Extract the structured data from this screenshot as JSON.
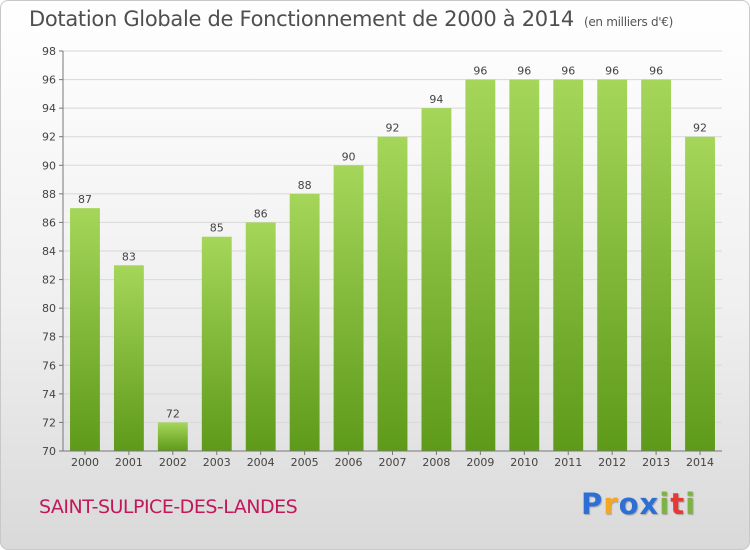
{
  "header": {
    "title": "Dotation Globale de Fonctionnement de 2000 à 2014",
    "subtitle": "(en milliers d'€)"
  },
  "commune": "SAINT-SULPICE-DES-LANDES",
  "logo": {
    "letters": [
      "P",
      "r",
      "o",
      "x",
      "i",
      "t",
      "i"
    ],
    "colors": [
      "#2e6fd6",
      "#f5a623",
      "#2e6fd6",
      "#2e6fd6",
      "#7cb342",
      "#e53935",
      "#7cb342"
    ]
  },
  "colors": {
    "bar_top": "#a5d65a",
    "bar_bottom": "#5e9a1a",
    "commune": "#c2185b"
  },
  "chart_data": {
    "type": "bar",
    "categories": [
      "2000",
      "2001",
      "2002",
      "2003",
      "2004",
      "2005",
      "2006",
      "2007",
      "2008",
      "2009",
      "2010",
      "2011",
      "2012",
      "2013",
      "2014"
    ],
    "values": [
      87,
      83,
      72,
      85,
      86,
      88,
      90,
      92,
      94,
      96,
      96,
      96,
      96,
      96,
      92
    ],
    "title": "Dotation Globale de Fonctionnement de 2000 à 2014",
    "ylabel": "",
    "xlabel": "",
    "ylim": [
      70,
      98
    ],
    "yticks": [
      70,
      72,
      74,
      76,
      78,
      80,
      82,
      84,
      86,
      88,
      90,
      92,
      94,
      96,
      98
    ],
    "grid": true,
    "data_labels": true
  }
}
